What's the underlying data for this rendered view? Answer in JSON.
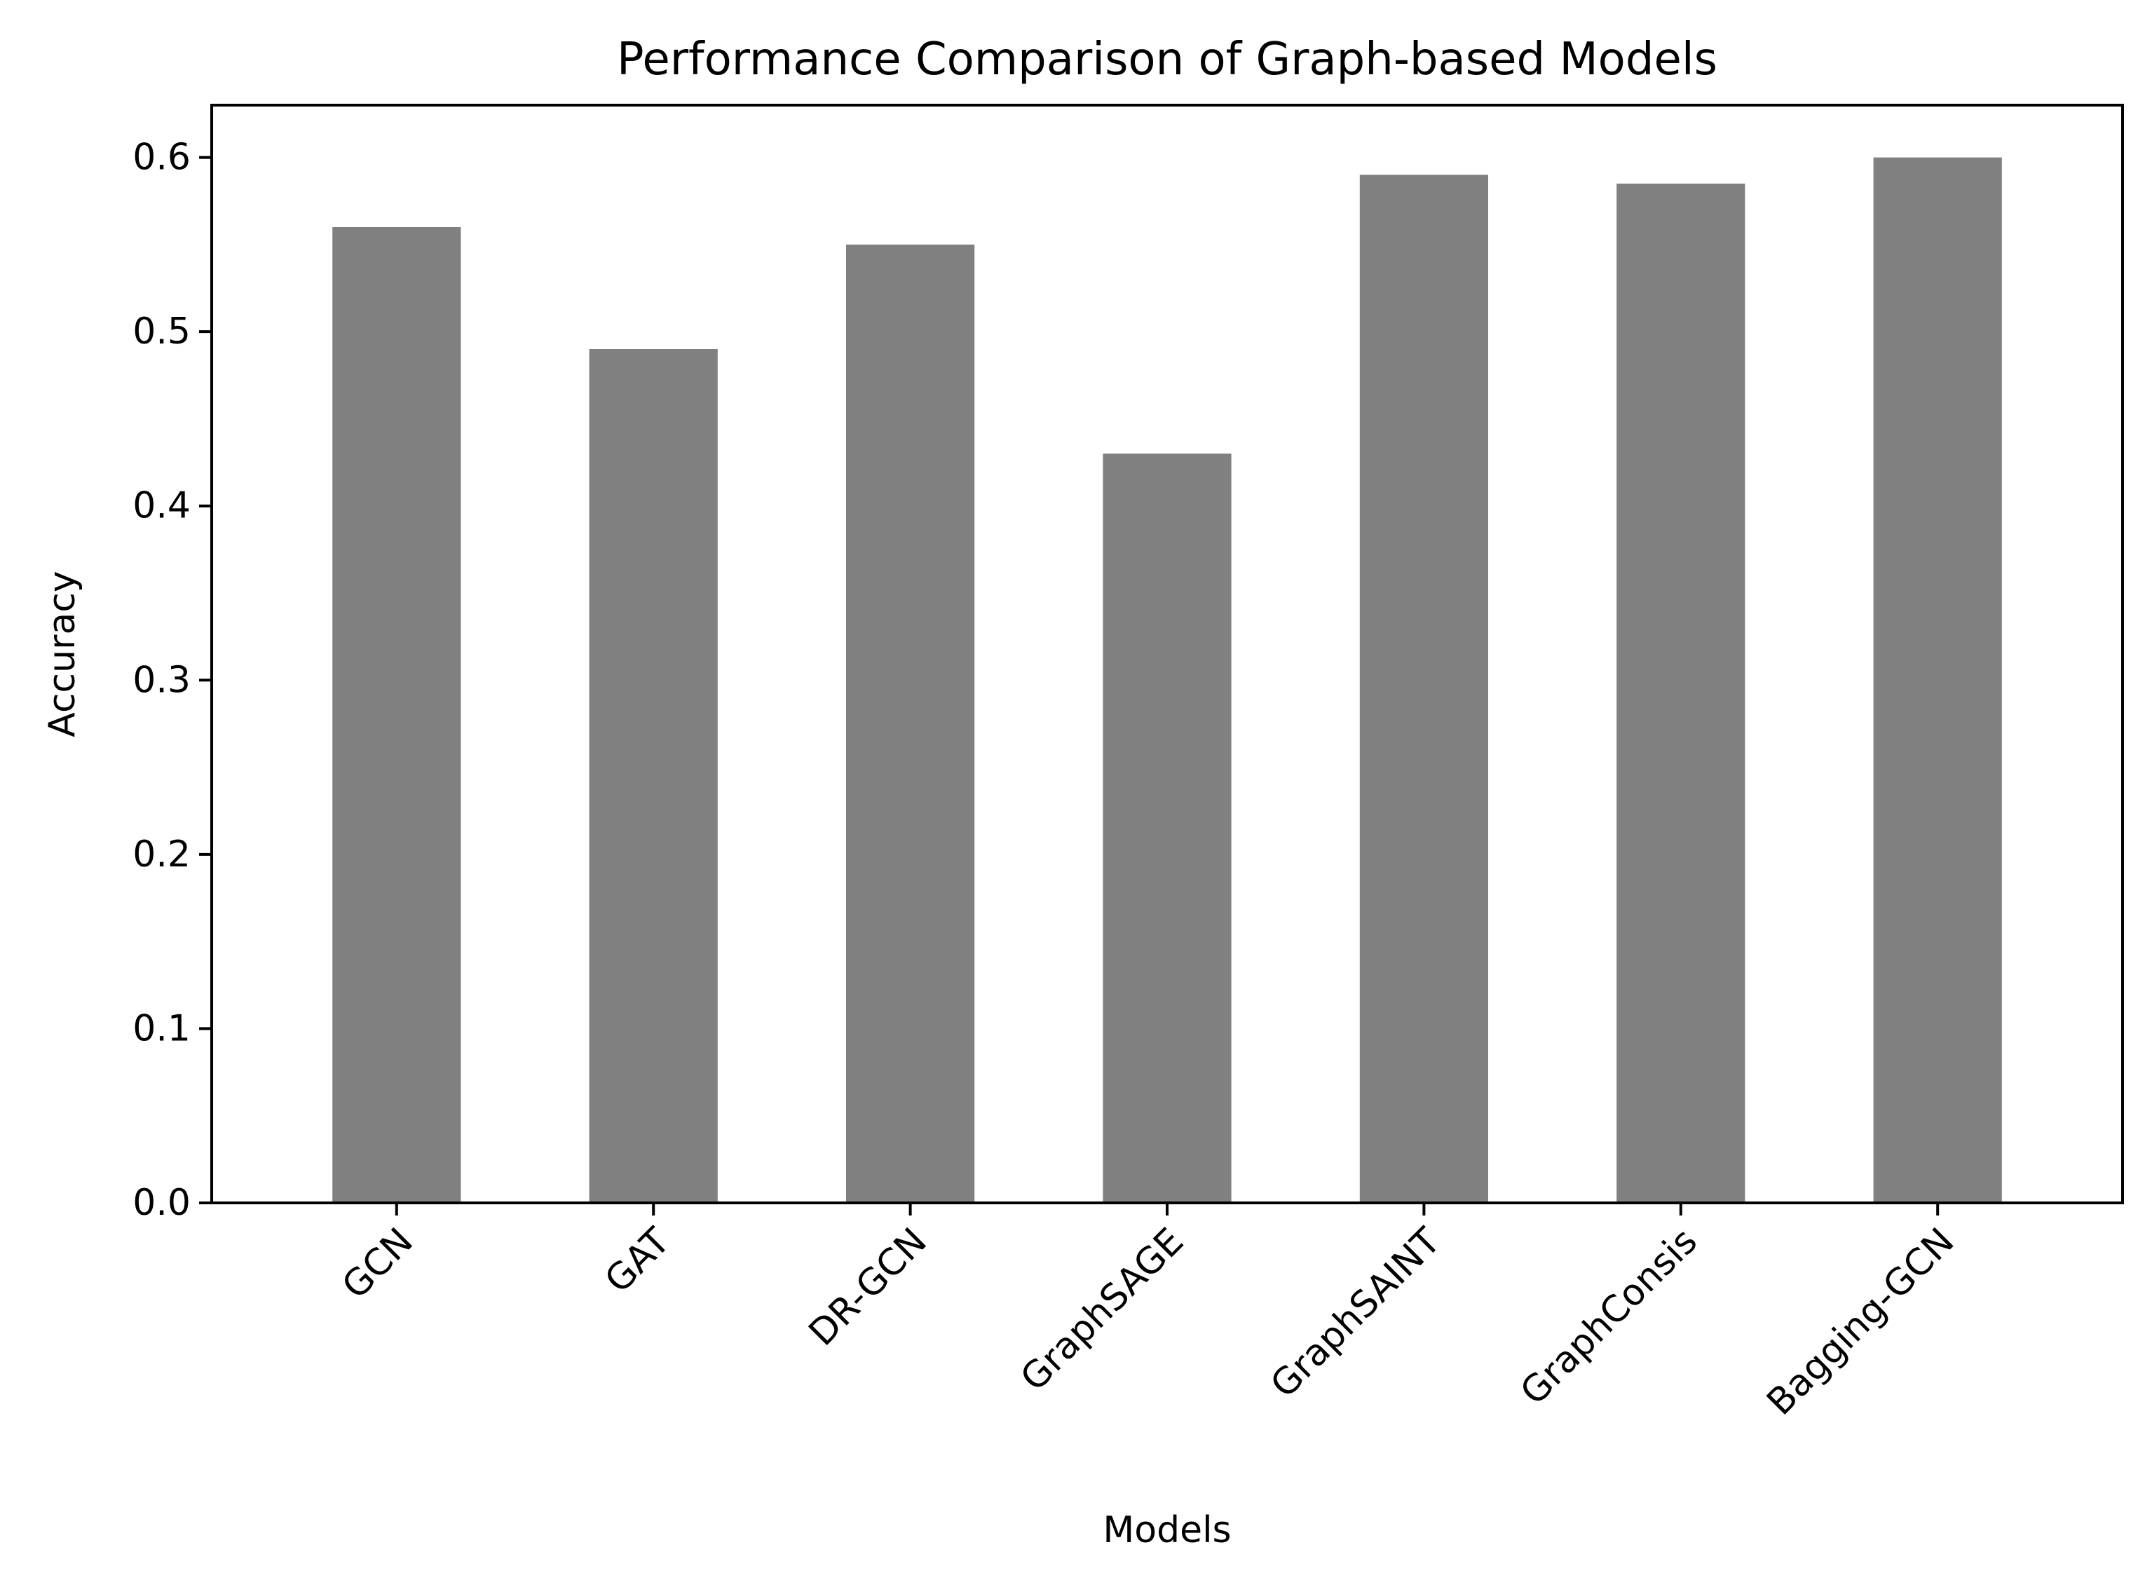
{
  "chart_data": {
    "type": "bar",
    "title": "Performance Comparison of Graph-based Models",
    "xlabel": "Models",
    "ylabel": "Accuracy",
    "categories": [
      "GCN",
      "GAT",
      "DR-GCN",
      "GraphSAGE",
      "GraphSAINT",
      "GraphConsis",
      "Bagging-GCN"
    ],
    "values": [
      0.56,
      0.49,
      0.55,
      0.43,
      0.59,
      0.585,
      0.6
    ],
    "ylim": [
      0,
      0.63
    ],
    "yticks": [
      0.0,
      0.1,
      0.2,
      0.3,
      0.4,
      0.5,
      0.6
    ],
    "ytick_labels": [
      "0.0",
      "0.1",
      "0.2",
      "0.3",
      "0.4",
      "0.5",
      "0.6"
    ],
    "bar_color": "#808080",
    "xtick_rotation_deg": 45,
    "grid": false,
    "legend": "none"
  }
}
